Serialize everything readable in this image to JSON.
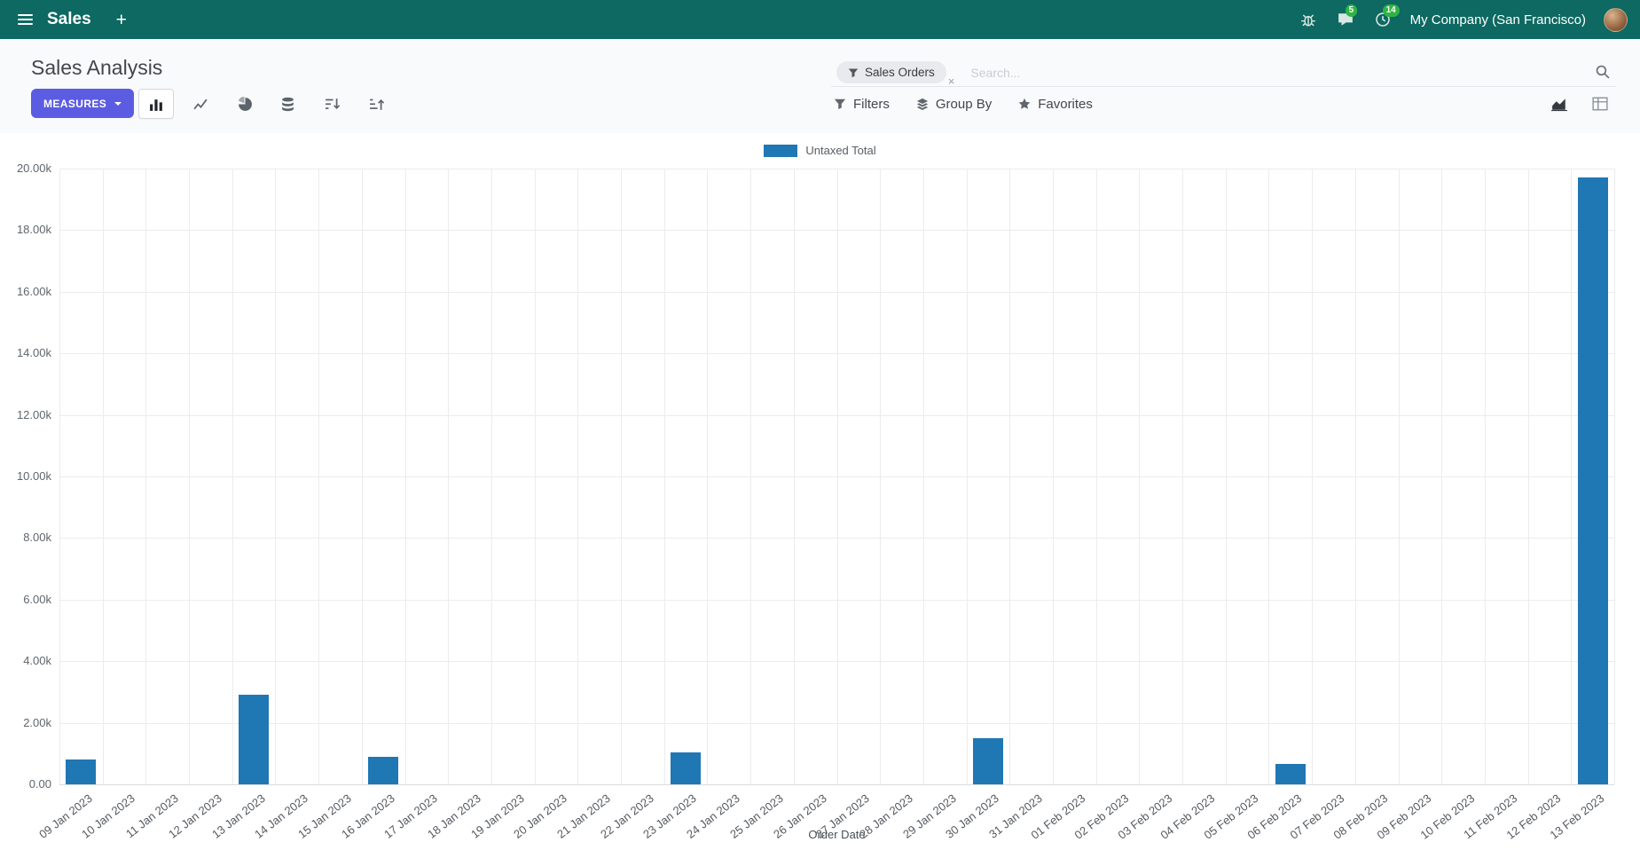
{
  "colors": {
    "navbar_bg": "#0d6961",
    "primary": "#5b5ce2",
    "badge": "#2fb344",
    "bar": "#1f77b4"
  },
  "navbar": {
    "app_name": "Sales",
    "plus_label": "+",
    "messages_badge": "5",
    "activities_badge": "14",
    "company": "My Company (San Francisco)"
  },
  "control_panel": {
    "breadcrumb": "Sales Analysis",
    "measures_label": "MEASURES",
    "search": {
      "facet_label": "Sales Orders",
      "facet_remove": "×",
      "placeholder": "Search..."
    },
    "filters_label": "Filters",
    "group_by_label": "Group By",
    "favorites_label": "Favorites"
  },
  "chart_data": {
    "type": "bar",
    "title": "",
    "legend_position": "top",
    "series": [
      {
        "name": "Untaxed Total",
        "color": "#1f77b4",
        "values": [
          800,
          0,
          0,
          0,
          2900,
          0,
          0,
          900,
          0,
          0,
          0,
          0,
          0,
          0,
          1050,
          0,
          0,
          0,
          0,
          0,
          0,
          1500,
          0,
          0,
          0,
          0,
          0,
          0,
          650,
          0,
          0,
          0,
          0,
          0,
          0,
          19700
        ]
      }
    ],
    "categories": [
      "09 Jan 2023",
      "10 Jan 2023",
      "11 Jan 2023",
      "12 Jan 2023",
      "13 Jan 2023",
      "14 Jan 2023",
      "15 Jan 2023",
      "16 Jan 2023",
      "17 Jan 2023",
      "18 Jan 2023",
      "19 Jan 2023",
      "20 Jan 2023",
      "21 Jan 2023",
      "22 Jan 2023",
      "23 Jan 2023",
      "24 Jan 2023",
      "25 Jan 2023",
      "26 Jan 2023",
      "27 Jan 2023",
      "28 Jan 2023",
      "29 Jan 2023",
      "30 Jan 2023",
      "31 Jan 2023",
      "01 Feb 2023",
      "02 Feb 2023",
      "03 Feb 2023",
      "04 Feb 2023",
      "05 Feb 2023",
      "06 Feb 2023",
      "07 Feb 2023",
      "08 Feb 2023",
      "09 Feb 2023",
      "10 Feb 2023",
      "11 Feb 2023",
      "12 Feb 2023",
      "13 Feb 2023"
    ],
    "xlabel": "Order Date",
    "ylabel": "",
    "ylim": [
      0,
      20000
    ],
    "ytick_step": 2000,
    "ytick_labels": [
      "0.00",
      "2.00k",
      "4.00k",
      "6.00k",
      "8.00k",
      "10.00k",
      "12.00k",
      "14.00k",
      "16.00k",
      "18.00k",
      "20.00k"
    ],
    "grid": true
  }
}
